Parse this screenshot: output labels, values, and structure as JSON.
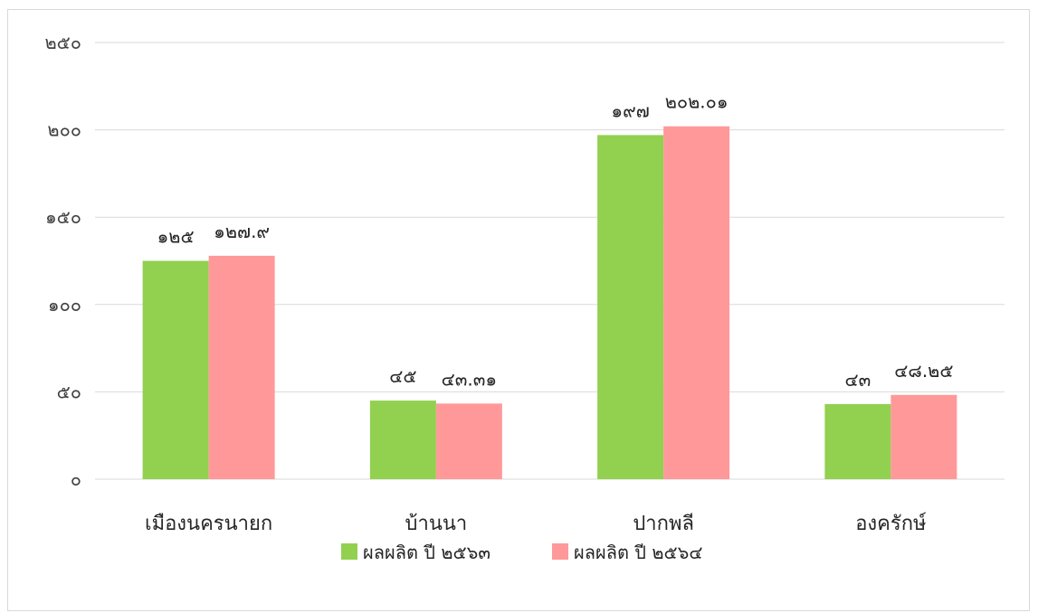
{
  "chart_data": {
    "type": "bar",
    "categories": [
      "เมืองนครนายก",
      "บ้านนา",
      "ปากพลี",
      "องครักษ์"
    ],
    "series": [
      {
        "name": "ผลผลิต ปี ๒๕๖๓",
        "color": "#92d050",
        "values": [
          125,
          45,
          197,
          43
        ],
        "labels": [
          "๑๒๕",
          "๔๕",
          "๑๙๗",
          "๔๓"
        ]
      },
      {
        "name": "ผลผลิต ปี ๒๕๖๔",
        "color": "#ff9999",
        "values": [
          127.9,
          43.31,
          202.01,
          48.25
        ],
        "labels": [
          "๑๒๗.๙",
          "๔๓.๓๑",
          "๒๐๒.๐๑",
          "๔๘.๒๕"
        ]
      }
    ],
    "yticks": [
      0,
      50,
      100,
      150,
      200,
      250
    ],
    "ytick_labels": [
      "๐",
      "๕๐",
      "๑๐๐",
      "๑๕๐",
      "๒๐๐",
      "๒๕๐"
    ],
    "ylim": [
      0,
      250
    ],
    "grid": true,
    "legend_position": "bottom",
    "title": "",
    "xlabel": "",
    "ylabel": "",
    "gridline_color": "#d9d9d9"
  }
}
